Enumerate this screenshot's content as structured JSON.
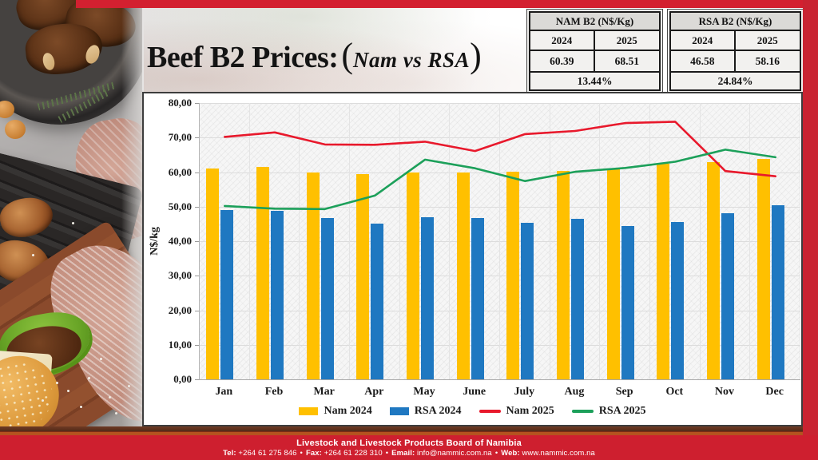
{
  "page": {
    "title_main": "Beef B2 Prices:",
    "title_paren_open": "(",
    "title_sub": "Nam vs RSA",
    "title_paren_close": ")"
  },
  "summary_tables": [
    {
      "title": "NAM B2 (N$/Kg)",
      "col1": "2024",
      "col2": "2025",
      "val1": "60.39",
      "val2": "68.51",
      "pct": "13.44%"
    },
    {
      "title": "RSA B2 (N$/Kg)",
      "col1": "2024",
      "col2": "2025",
      "val1": "46.58",
      "val2": "58.16",
      "pct": "24.84%"
    }
  ],
  "chart_data": {
    "type": "bar",
    "subtype": "bars-plus-lines",
    "categories": [
      "Jan",
      "Feb",
      "Mar",
      "Apr",
      "May",
      "June",
      "July",
      "Aug",
      "Sep",
      "Oct",
      "Nov",
      "Dec"
    ],
    "series": [
      {
        "name": "Nam 2024",
        "render": "bar",
        "color": "#FFC000",
        "values": [
          61.0,
          61.5,
          59.9,
          59.5,
          60.0,
          59.8,
          60.2,
          60.3,
          60.9,
          62.5,
          63.0,
          63.8
        ]
      },
      {
        "name": "RSA 2024",
        "render": "bar",
        "color": "#1F78C1",
        "values": [
          49.0,
          48.8,
          46.8,
          45.2,
          47.0,
          46.8,
          45.4,
          46.5,
          44.3,
          45.5,
          48.0,
          50.4
        ]
      },
      {
        "name": "Nam 2025",
        "render": "line",
        "color": "#E8192C",
        "values": [
          70.2,
          71.5,
          68.0,
          67.9,
          68.8,
          66.1,
          71.0,
          71.9,
          74.2,
          74.6,
          60.3,
          58.8
        ]
      },
      {
        "name": "RSA 2025",
        "render": "line",
        "color": "#1CA05A",
        "values": [
          50.2,
          49.4,
          49.3,
          53.2,
          63.6,
          61.1,
          57.4,
          60.1,
          61.2,
          63.0,
          66.5,
          64.3
        ]
      }
    ],
    "xlabel": "",
    "ylabel": "N$/kg",
    "ylim": [
      0,
      80
    ],
    "ytick_step": 10,
    "yticks": [
      "0,00",
      "10,00",
      "20,00",
      "30,00",
      "40,00",
      "50,00",
      "60,00",
      "70,00",
      "80,00"
    ],
    "grid": true,
    "legend_position": "bottom"
  },
  "footer": {
    "org": "Livestock and Livestock Products Board of Namibia",
    "contacts": [
      {
        "label": "Tel:",
        "value": "+264 61 275 846"
      },
      {
        "label": "Fax:",
        "value": "+264 61 228 310"
      },
      {
        "label": "Email:",
        "value": "info@nammic.com.na"
      },
      {
        "label": "Web:",
        "value": "www.nammic.com.na"
      }
    ],
    "separator": "•"
  },
  "colors": {
    "frame_red": "#CE1F2F",
    "top_bar_red": "#D32030",
    "rust_accent": "#B5521F",
    "bar_yellow": "#FFC000",
    "bar_blue": "#1F78C1",
    "line_red": "#E8192C",
    "line_green": "#1CA05A"
  }
}
